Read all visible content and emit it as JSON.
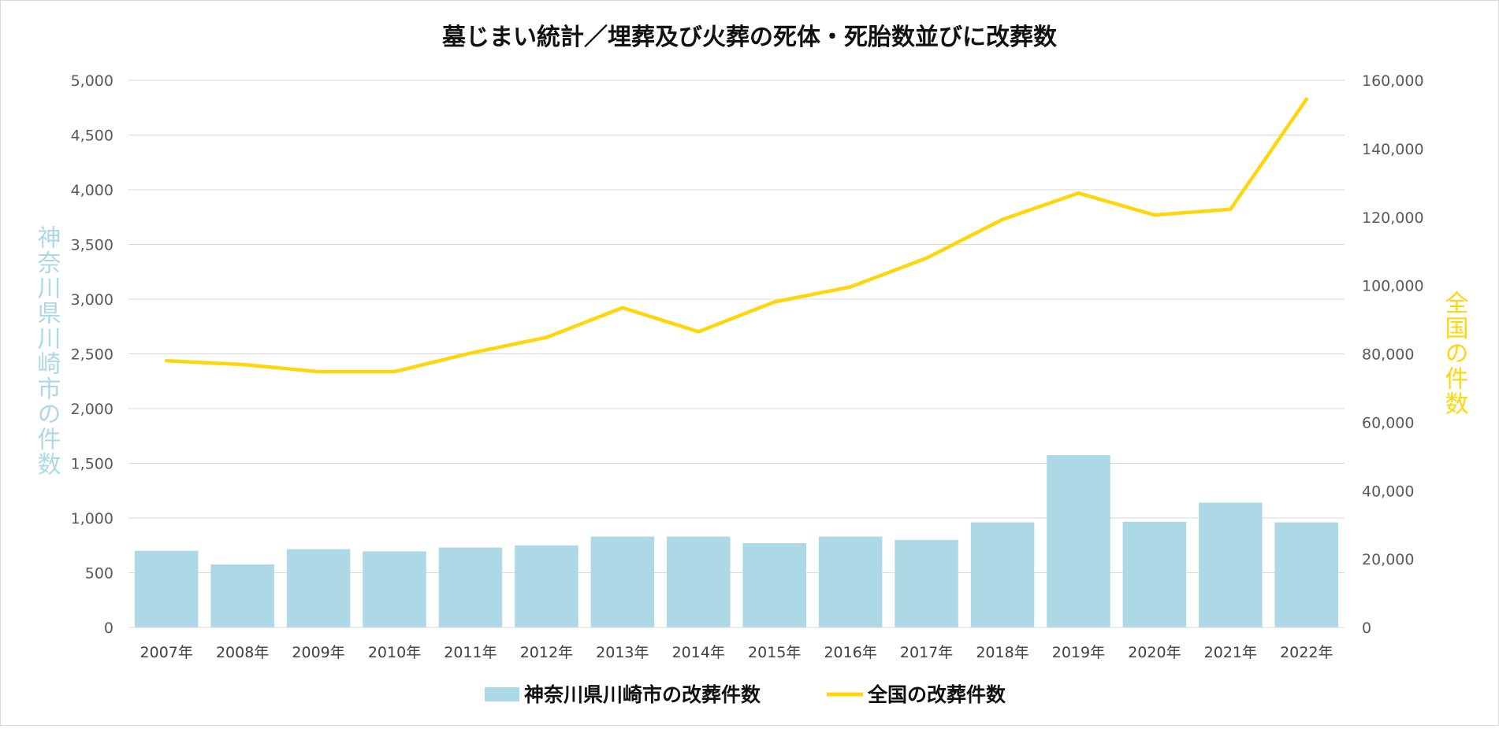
{
  "chart_data": {
    "type": "bar+line",
    "title": "墓じまい統計／埋葬及び火葬の死体・死胎数並びに改葬数",
    "categories": [
      "2007年",
      "2008年",
      "2009年",
      "2010年",
      "2011年",
      "2012年",
      "2013年",
      "2014年",
      "2015年",
      "2016年",
      "2017年",
      "2018年",
      "2019年",
      "2020年",
      "2021年",
      "2022年"
    ],
    "series": [
      {
        "name": "神奈川県川崎市の改葬件数",
        "type": "bar",
        "axis": "left",
        "color": "#add8e6",
        "values": [
          700,
          575,
          715,
          695,
          730,
          750,
          830,
          830,
          770,
          830,
          800,
          960,
          1575,
          965,
          1140,
          960
        ]
      },
      {
        "name": "全国の改葬件数",
        "type": "line",
        "axis": "right",
        "color": "#ffd60a",
        "values": [
          78000,
          76900,
          74800,
          74800,
          80200,
          84800,
          93500,
          86500,
          95200,
          99600,
          108000,
          119300,
          127000,
          120600,
          122300,
          154500
        ]
      }
    ],
    "ylabel_left": "神奈川県川崎市の件数",
    "ylabel_right": "全国の件数",
    "ylim_left": [
      0,
      5000
    ],
    "ylim_right": [
      0,
      160000
    ],
    "yticks_left": [
      "0",
      "500",
      "1,000",
      "1,500",
      "2,000",
      "2,500",
      "3,000",
      "3,500",
      "4,000",
      "4,500",
      "5,000"
    ],
    "yticks_right": [
      "0",
      "20,000",
      "40,000",
      "60,000",
      "80,000",
      "100,000",
      "120,000",
      "140,000",
      "160,000"
    ],
    "grid": true,
    "legend_position": "bottom"
  }
}
